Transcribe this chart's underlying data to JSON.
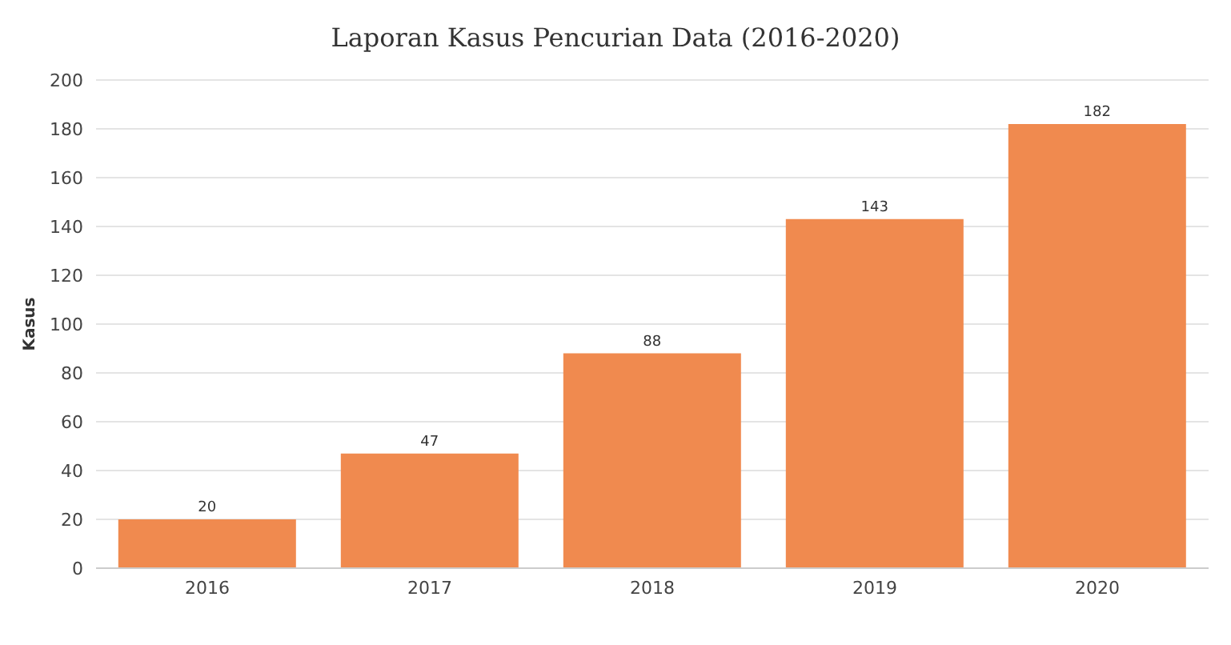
{
  "chart_data": {
    "type": "bar",
    "title": "Laporan Kasus Pencurian Data (2016-2020)",
    "ylabel": "Kasus",
    "categories": [
      "2016",
      "2017",
      "2018",
      "2019",
      "2020"
    ],
    "values": [
      20,
      47,
      88,
      143,
      182
    ],
    "color": "#f08a4f",
    "ylim": [
      0,
      200
    ],
    "yticks": [
      0,
      20,
      40,
      60,
      80,
      100,
      120,
      140,
      160,
      180,
      200
    ],
    "grid": "y",
    "data_labels": true
  }
}
